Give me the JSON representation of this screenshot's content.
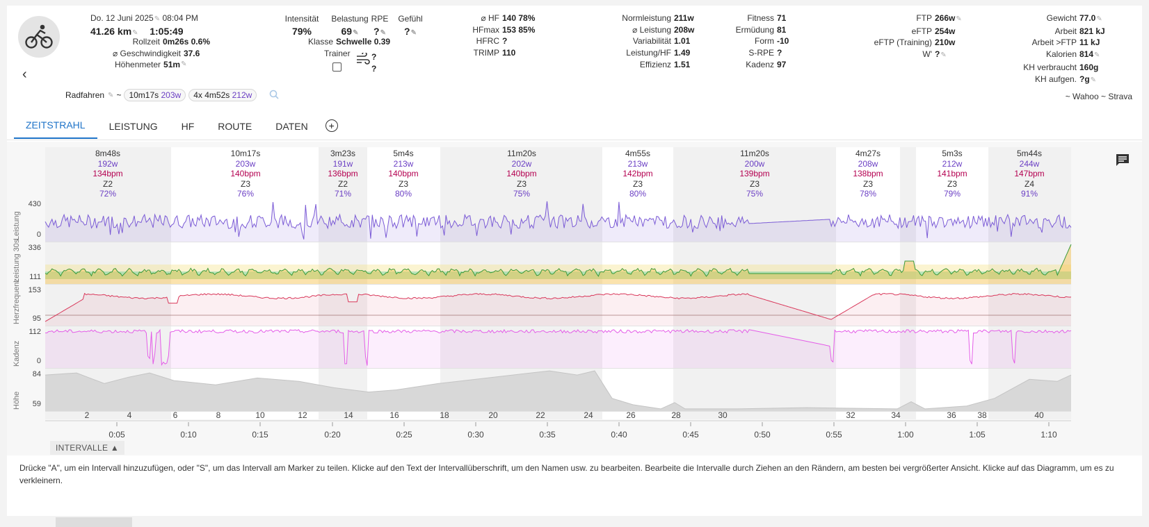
{
  "header": {
    "date": "Do. 12 Juni 2025",
    "time": "08:04 PM",
    "distance": "41.26 km",
    "duration": "1:05:49",
    "stats_left": [
      {
        "label": "Rollzeit",
        "value": "0m26s 0.6%"
      },
      {
        "label": "⌀ Geschwindigkeit",
        "value": "37.6"
      },
      {
        "label": "Höhenmeter",
        "value": "51m"
      }
    ],
    "intensity": {
      "label": "Intensität",
      "value": "79%"
    },
    "load": {
      "label": "Belastung",
      "value": "69"
    },
    "rpe": {
      "label": "RPE",
      "value": "?"
    },
    "feel": {
      "label": "Gefühl",
      "value": "?"
    },
    "class": {
      "label": "Klasse",
      "value": "Schwelle 0.39"
    },
    "trainer": {
      "label": "Trainer"
    },
    "weather": {
      "line1": "?",
      "line2": "?"
    },
    "hr_stats": [
      {
        "label": "⌀ HF",
        "value": "140 78%"
      },
      {
        "label": "HFmax",
        "value": "153 85%"
      },
      {
        "label": "HFRC",
        "value": "?"
      },
      {
        "label": "TRIMP",
        "value": "110"
      }
    ],
    "power_stats": [
      {
        "label": "Normleistung",
        "value": "211w"
      },
      {
        "label": "⌀ Leistung",
        "value": "208w"
      },
      {
        "label": "Variabilität",
        "value": "1.01"
      },
      {
        "label": "Leistung/HF",
        "value": "1.49"
      },
      {
        "label": "Effizienz",
        "value": "1.51"
      }
    ],
    "fitness_stats": [
      {
        "label": "Fitness",
        "value": "71"
      },
      {
        "label": "Ermüdung",
        "value": "81"
      },
      {
        "label": "Form",
        "value": "-10"
      },
      {
        "label": "S-RPE",
        "value": "?"
      },
      {
        "label": "Kadenz",
        "value": "97"
      }
    ],
    "ftp_stats": [
      {
        "label": "FTP",
        "value": "266w"
      },
      {
        "label": "eFTP",
        "value": "254w"
      },
      {
        "label": "eFTP (Training)",
        "value": "210w"
      },
      {
        "label": "W'",
        "value": "?"
      }
    ],
    "body_stats": [
      {
        "label": "Gewicht",
        "value": "77.0"
      },
      {
        "label": "Arbeit",
        "value": "821 kJ"
      },
      {
        "label": "Arbeit >FTP",
        "value": "11 kJ"
      },
      {
        "label": "Kalorien",
        "value": "814"
      },
      {
        "label": "KH verbraucht",
        "value": "160g"
      },
      {
        "label": "KH aufgen.",
        "value": "?g"
      }
    ],
    "summary": {
      "sport": "Radfahren",
      "tilde": "~",
      "best_time": "10m17s",
      "best_watts": "203w",
      "reps": "4x",
      "rep_time": "4m52s",
      "rep_watts": "212w"
    },
    "sources": "~ Wahoo ~ Strava"
  },
  "tabs": [
    "ZEITSTRAHL",
    "LEISTUNG",
    "HF",
    "ROUTE",
    "DATEN"
  ],
  "active_tab": 0,
  "intervals": [
    {
      "time": "8m48s",
      "watts": "192w",
      "bpm": "134bpm",
      "zone": "Z2",
      "pct": "72%"
    },
    {
      "time": "10m17s",
      "watts": "203w",
      "bpm": "140bpm",
      "zone": "Z3",
      "pct": "76%"
    },
    {
      "time": "3m23s",
      "watts": "191w",
      "bpm": "136bpm",
      "zone": "Z2",
      "pct": "71%"
    },
    {
      "time": "5m4s",
      "watts": "213w",
      "bpm": "140bpm",
      "zone": "Z3",
      "pct": "80%"
    },
    {
      "time": "11m20s",
      "watts": "202w",
      "bpm": "140bpm",
      "zone": "Z3",
      "pct": "75%"
    },
    {
      "time": "4m55s",
      "watts": "213w",
      "bpm": "142bpm",
      "zone": "Z3",
      "pct": "80%"
    },
    {
      "time": "11m20s",
      "watts": "200w",
      "bpm": "139bpm",
      "zone": "Z3",
      "pct": "75%"
    },
    {
      "time": "4m27s",
      "watts": "208w",
      "bpm": "138bpm",
      "zone": "Z3",
      "pct": "78%"
    },
    {
      "time": "5m3s",
      "watts": "212w",
      "bpm": "141bpm",
      "zone": "Z3",
      "pct": "79%"
    },
    {
      "time": "5m44s",
      "watts": "244w",
      "bpm": "147bpm",
      "zone": "Z4",
      "pct": "91%"
    }
  ],
  "charts": [
    {
      "title": "Leistung",
      "max": "430",
      "min": "0"
    },
    {
      "title": "Leistung 30s",
      "max": "336",
      "min": "111"
    },
    {
      "title": "Herzfrequenz",
      "max": "153",
      "min": "95"
    },
    {
      "title": "Kadenz",
      "max": "112",
      "min": "0"
    },
    {
      "title": "Höhe",
      "max": "84",
      "min": "59"
    }
  ],
  "distance_ticks": [
    "2",
    "4",
    "6",
    "8",
    "10",
    "12",
    "14",
    "16",
    "18",
    "20",
    "22",
    "24",
    "26",
    "28",
    "30",
    "32",
    "34",
    "36",
    "38",
    "40"
  ],
  "time_ticks": [
    "0:05",
    "0:10",
    "0:15",
    "0:20",
    "0:25",
    "0:30",
    "0:35",
    "0:40",
    "0:45",
    "0:50",
    "0:55",
    "1:00",
    "1:05",
    "1:10"
  ],
  "intervals_button": "INTERVALLE",
  "help_text": "Drücke \"A\", um ein Intervall hinzuzufügen, oder \"S\", um das Intervall am Marker zu teilen. Klicke auf den Text der Intervallüberschrift, um den Namen usw. zu bearbeiten. Bearbeite die Intervalle durch Ziehen an den Rändern, am besten bei vergrößerter Ansicht. Klicke auf das Diagramm, um es zu verkleinern.",
  "colors": {
    "accent": "#1e73c8",
    "power": "#7b5bd6",
    "hr": "#d9375a",
    "cadence": "#e45ce8",
    "altitude": "#d8d8d8"
  }
}
